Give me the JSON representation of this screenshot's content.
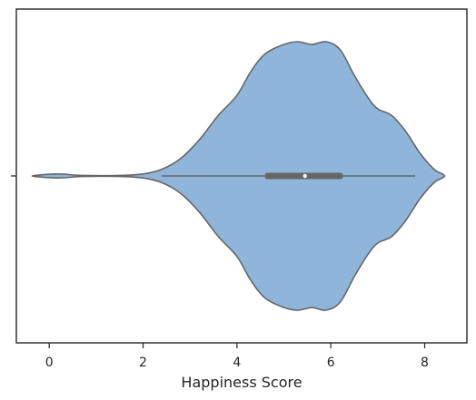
{
  "chart_data": {
    "type": "violin",
    "xlabel": "Happiness Score",
    "ylabel": "",
    "xlim": [
      -0.7,
      8.9
    ],
    "xticks": [
      0,
      2,
      4,
      6,
      8
    ],
    "xtick_labels": [
      "0",
      "2",
      "4",
      "6",
      "8"
    ],
    "yticks": [
      ""
    ],
    "grid": false,
    "orientation": "horizontal",
    "violin": {
      "fill_color": "#8fb5da",
      "edge_color": "#666666",
      "kde_min": -0.3,
      "kde_max": 8.4,
      "density_profile": [
        {
          "x": -0.3,
          "w": 0.004
        },
        {
          "x": 0.2,
          "w": 0.015
        },
        {
          "x": 0.7,
          "w": 0.004
        },
        {
          "x": 1.5,
          "w": 0.004
        },
        {
          "x": 2.0,
          "w": 0.015
        },
        {
          "x": 2.4,
          "w": 0.05
        },
        {
          "x": 2.8,
          "w": 0.13
        },
        {
          "x": 3.2,
          "w": 0.27
        },
        {
          "x": 3.6,
          "w": 0.45
        },
        {
          "x": 4.0,
          "w": 0.6
        },
        {
          "x": 4.3,
          "w": 0.78
        },
        {
          "x": 4.6,
          "w": 0.91
        },
        {
          "x": 5.0,
          "w": 0.98
        },
        {
          "x": 5.3,
          "w": 1.0
        },
        {
          "x": 5.6,
          "w": 0.98
        },
        {
          "x": 5.9,
          "w": 1.0
        },
        {
          "x": 6.2,
          "w": 0.94
        },
        {
          "x": 6.5,
          "w": 0.75
        },
        {
          "x": 6.8,
          "w": 0.58
        },
        {
          "x": 7.0,
          "w": 0.5
        },
        {
          "x": 7.3,
          "w": 0.45
        },
        {
          "x": 7.6,
          "w": 0.33
        },
        {
          "x": 7.9,
          "w": 0.17
        },
        {
          "x": 8.2,
          "w": 0.05
        },
        {
          "x": 8.4,
          "w": 0.01
        }
      ],
      "whisker_min": 2.4,
      "q1": 4.6,
      "median": 5.45,
      "q3": 6.25,
      "whisker_max": 7.8
    }
  }
}
